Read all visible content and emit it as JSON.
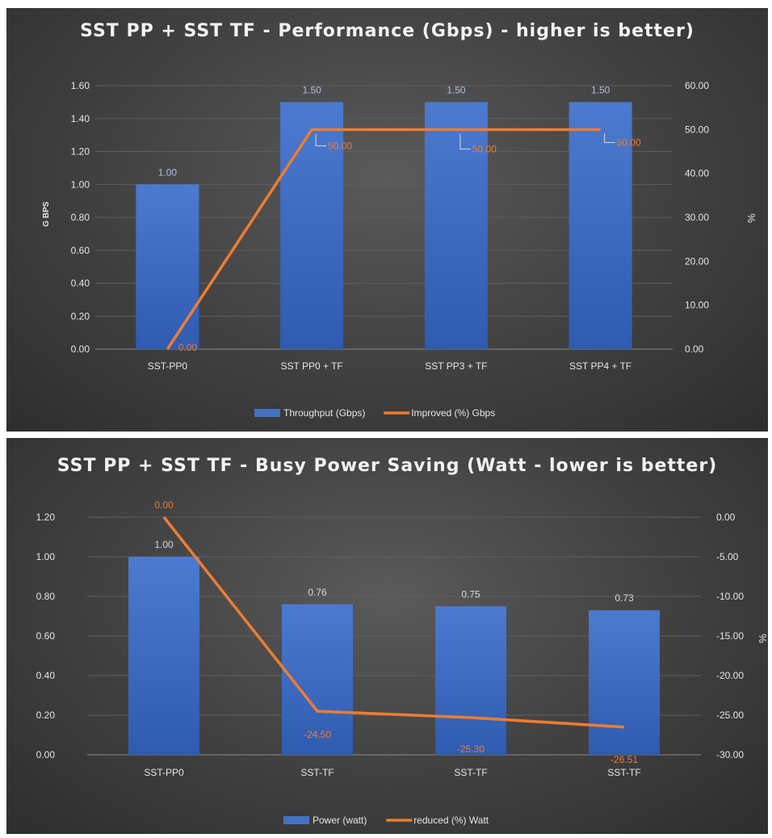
{
  "chart_data": [
    {
      "type": "bar",
      "title": "SST PP + SST TF - Performance (Gbps) - higher is better)",
      "categories": [
        "SST-PP0",
        "SST PP0 + TF",
        "SST PP3 + TF",
        "SST PP4 + TF"
      ],
      "ylabel": "G BPS",
      "y2label": "%",
      "ylim": [
        0,
        1.6
      ],
      "y2lim": [
        0,
        60
      ],
      "y_ticks": [
        "0.00",
        "0.20",
        "0.40",
        "0.60",
        "0.80",
        "1.00",
        "1.20",
        "1.40",
        "1.60"
      ],
      "y2_ticks": [
        "0.00",
        "10.00",
        "20.00",
        "30.00",
        "40.00",
        "50.00",
        "60.00"
      ],
      "grid": true,
      "legend_position": "bottom",
      "colors": {
        "bar": "#4472c4",
        "line": "#ed7d31",
        "bar_label": "#a9c1ec",
        "line_label": "#ed7d31"
      },
      "series": [
        {
          "name": "Throughput (Gbps)",
          "type": "bar",
          "axis": "left",
          "values": [
            1.0,
            1.5,
            1.5,
            1.5
          ],
          "labels": [
            "1.00",
            "1.50",
            "1.50",
            "1.50"
          ]
        },
        {
          "name": "Improved (%) Gbps",
          "type": "line",
          "axis": "right",
          "values": [
            0.0,
            50.0,
            50.0,
            50.0
          ],
          "labels": [
            "0.00",
            "50.00",
            "50.00",
            "50.00"
          ]
        }
      ]
    },
    {
      "type": "bar",
      "title": "SST PP + SST TF - Busy Power Saving (Watt - lower is better)",
      "categories": [
        "SST-PP0",
        "SST-TF",
        "SST-TF",
        "SST-TF"
      ],
      "ylabel": "",
      "y2label": "%",
      "ylim": [
        0,
        1.2
      ],
      "y2lim": [
        -30,
        0
      ],
      "y_ticks": [
        "0.00",
        "0.20",
        "0.40",
        "0.60",
        "0.80",
        "1.00",
        "1.20"
      ],
      "y2_ticks": [
        "-30.00",
        "-25.00",
        "-20.00",
        "-15.00",
        "-10.00",
        "-5.00",
        "0.00"
      ],
      "grid": true,
      "legend_position": "bottom",
      "colors": {
        "bar": "#4472c4",
        "line": "#ed7d31",
        "bar_label": "#d9d9d9",
        "line_label": "#ed7d31"
      },
      "series": [
        {
          "name": "Power (watt)",
          "type": "bar",
          "axis": "left",
          "values": [
            1.0,
            0.76,
            0.75,
            0.73
          ],
          "labels": [
            "1.00",
            "0.76",
            "0.75",
            "0.73"
          ]
        },
        {
          "name": "reduced (%) Watt",
          "type": "line",
          "axis": "right",
          "values": [
            0.0,
            -24.5,
            -25.3,
            -26.51
          ],
          "labels": [
            "0.00",
            "-24.50",
            "-25.30",
            "-26.51"
          ]
        }
      ]
    }
  ]
}
